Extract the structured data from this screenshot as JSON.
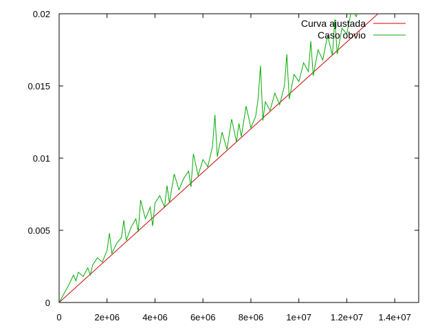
{
  "chart_data": {
    "type": "line",
    "title": "",
    "xlabel": "",
    "ylabel": "",
    "xlim": [
      0,
      15000000
    ],
    "ylim": [
      0,
      0.02
    ],
    "x_ticks": [
      {
        "value": 0,
        "label": "0"
      },
      {
        "value": 2000000,
        "label": "2e+06"
      },
      {
        "value": 4000000,
        "label": "4e+06"
      },
      {
        "value": 6000000,
        "label": "6e+06"
      },
      {
        "value": 8000000,
        "label": "8e+06"
      },
      {
        "value": 10000000,
        "label": "1e+07"
      },
      {
        "value": 12000000,
        "label": "1.2e+07"
      },
      {
        "value": 14000000,
        "label": "1.4e+07"
      }
    ],
    "y_ticks": [
      {
        "value": 0,
        "label": "0"
      },
      {
        "value": 0.005,
        "label": "0.005"
      },
      {
        "value": 0.01,
        "label": "0.01"
      },
      {
        "value": 0.015,
        "label": "0.015"
      },
      {
        "value": 0.02,
        "label": "0.02"
      }
    ],
    "grid": false,
    "legend_position": "top-right",
    "series": [
      {
        "name": "Curva ajustada",
        "color": "#cc0000",
        "x": [
          0,
          13700000
        ],
        "y": [
          0,
          0.0206
        ]
      },
      {
        "name": "Caso obvio",
        "color": "#00aa00",
        "x": [
          0,
          200000,
          400000,
          600000,
          700000,
          800000,
          1000000,
          1200000,
          1300000,
          1400000,
          1600000,
          1800000,
          2000000,
          2100000,
          2200000,
          2400000,
          2600000,
          2700000,
          2800000,
          3000000,
          3200000,
          3300000,
          3400000,
          3600000,
          3800000,
          3900000,
          4000000,
          4200000,
          4400000,
          4500000,
          4600000,
          4800000,
          5000000,
          5200000,
          5400000,
          5500000,
          5600000,
          5800000,
          6000000,
          6200000,
          6400000,
          6500000,
          6600000,
          6800000,
          7000000,
          7200000,
          7400000,
          7500000,
          7600000,
          7800000,
          8000000,
          8200000,
          8300000,
          8400000,
          8500000,
          8600000,
          8800000,
          9000000,
          9200000,
          9400000,
          9500000,
          9600000,
          9800000,
          10000000,
          10200000,
          10400000,
          10500000,
          10600000,
          10800000,
          11000000,
          11200000,
          11400000,
          11500000,
          11600000,
          11800000,
          12000000,
          12200000,
          12400000,
          12600000,
          12800000,
          13000000,
          13200000,
          13300000
        ],
        "y": [
          0,
          0.0006,
          0.0012,
          0.0019,
          0.0015,
          0.0021,
          0.0018,
          0.0024,
          0.0019,
          0.0026,
          0.0031,
          0.0028,
          0.0036,
          0.0048,
          0.0034,
          0.0041,
          0.0045,
          0.0057,
          0.0043,
          0.0052,
          0.0058,
          0.0049,
          0.0071,
          0.0058,
          0.0066,
          0.0053,
          0.0069,
          0.0074,
          0.0066,
          0.0081,
          0.0069,
          0.0089,
          0.0078,
          0.0086,
          0.0091,
          0.008,
          0.0103,
          0.0088,
          0.0099,
          0.0094,
          0.0108,
          0.013,
          0.0101,
          0.0118,
          0.0106,
          0.0127,
          0.0111,
          0.0124,
          0.0115,
          0.0136,
          0.0121,
          0.0129,
          0.0141,
          0.0164,
          0.0126,
          0.0139,
          0.0133,
          0.0145,
          0.0137,
          0.015,
          0.0172,
          0.0141,
          0.0158,
          0.0153,
          0.0166,
          0.016,
          0.0181,
          0.0157,
          0.0175,
          0.0168,
          0.0185,
          0.0171,
          0.0196,
          0.0172,
          0.019,
          0.0186,
          0.0203,
          0.0198,
          0.021,
          0.0205,
          0.0212,
          0.02,
          0.0208
        ]
      }
    ]
  }
}
